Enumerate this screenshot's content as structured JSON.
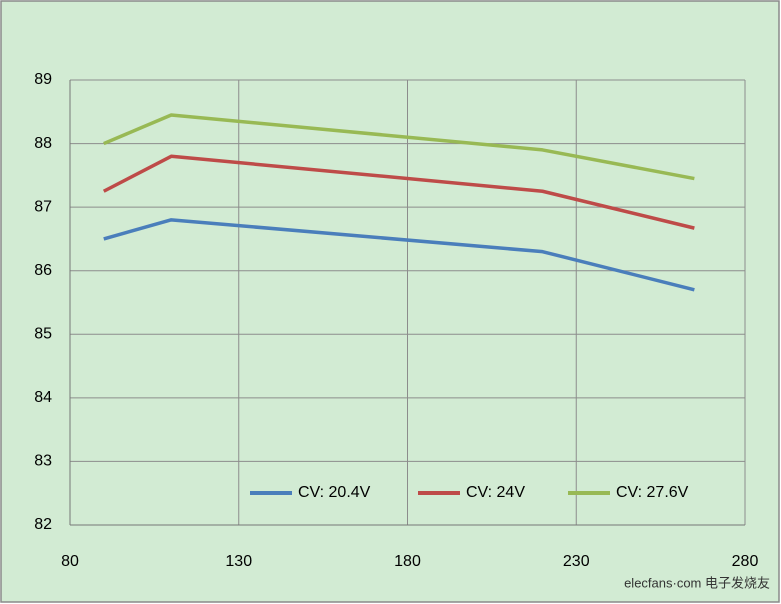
{
  "chart_data": {
    "type": "line",
    "x": [
      90,
      110,
      220,
      265
    ],
    "series": [
      {
        "name": "CV: 20.4V",
        "color": "#4a7ebb",
        "values": [
          86.5,
          86.8,
          86.3,
          85.7
        ]
      },
      {
        "name": "CV: 24V",
        "color": "#be4b48",
        "values": [
          87.25,
          87.8,
          87.25,
          86.67
        ]
      },
      {
        "name": "CV: 27.6V",
        "color": "#98b954",
        "values": [
          88.0,
          88.45,
          87.9,
          87.45
        ]
      }
    ],
    "xlim": [
      80,
      280
    ],
    "xticks": [
      80,
      130,
      180,
      230,
      280
    ],
    "ylim": [
      82,
      89
    ],
    "yticks": [
      82,
      83,
      84,
      85,
      86,
      87,
      88,
      89
    ],
    "grid": true,
    "legend": "bottom",
    "watermark": "elecfans·com 电子发烧友"
  }
}
